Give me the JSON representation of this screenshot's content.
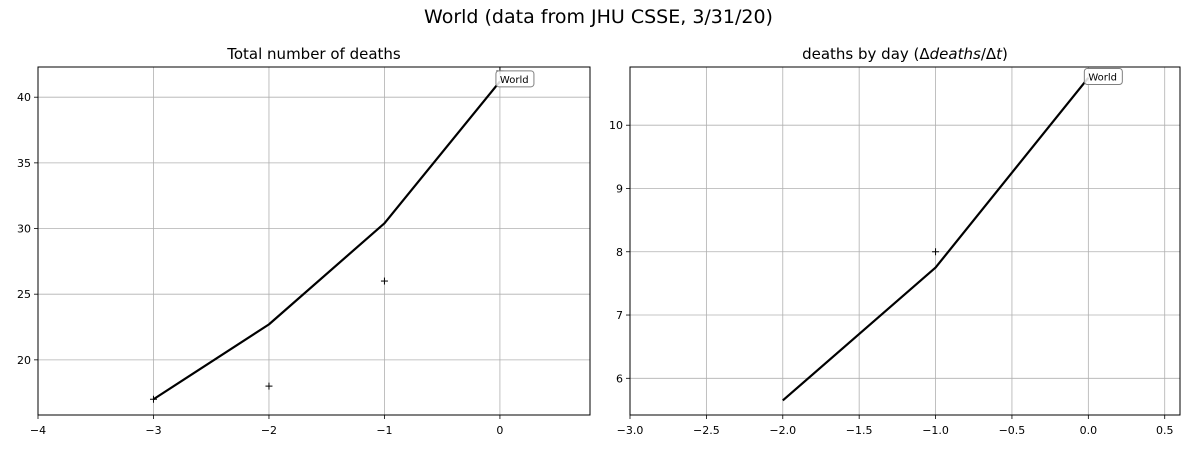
{
  "figure": {
    "suptitle": "World (data from JHU CSSE, 3/31/20)"
  },
  "chart_data": [
    {
      "type": "line",
      "title": "Total number of deaths",
      "xlabel": "",
      "ylabel": "",
      "xlim": [
        -4,
        0.78
      ],
      "ylim": [
        15.8,
        42.3
      ],
      "xticks": [
        -4,
        -3,
        -2,
        -1,
        0
      ],
      "xtick_labels": [
        "−4",
        "−3",
        "−2",
        "−1",
        "0"
      ],
      "yticks": [
        20,
        25,
        30,
        35,
        40
      ],
      "ytick_labels": [
        "20",
        "25",
        "30",
        "35",
        "40"
      ],
      "grid": true,
      "series": [
        {
          "kind": "line",
          "color": "#000000",
          "x": [
            -3,
            -2,
            -1,
            0
          ],
          "y": [
            17.0,
            22.7,
            30.4,
            41.2
          ]
        },
        {
          "kind": "markers",
          "marker": "+",
          "color": "#000000",
          "x": [
            -3,
            -2,
            -1,
            0
          ],
          "y": [
            17,
            18,
            26,
            42
          ]
        }
      ],
      "annotation": {
        "text": "World",
        "x": 0,
        "y": 41.4
      }
    },
    {
      "type": "line",
      "title": "deaths by day (Δdeaths/Δt)",
      "title_parts": {
        "prefix": "deaths by day (",
        "delta1": "Δ",
        "word": "deaths",
        "slash": "/",
        "delta2": "Δ",
        "t": "t",
        "suffix": ")"
      },
      "xlabel": "",
      "ylabel": "",
      "xlim": [
        -3.0,
        0.6
      ],
      "ylim": [
        5.42,
        10.92
      ],
      "xticks": [
        -3.0,
        -2.5,
        -2.0,
        -1.5,
        -1.0,
        -0.5,
        0.0,
        0.5
      ],
      "xtick_labels": [
        "−3.0",
        "−2.5",
        "−2.0",
        "−1.5",
        "−1.0",
        "−0.5",
        "0.0",
        "0.5"
      ],
      "yticks": [
        6,
        7,
        8,
        9,
        10
      ],
      "ytick_labels": [
        "6",
        "7",
        "8",
        "9",
        "10"
      ],
      "grid": true,
      "series": [
        {
          "kind": "line",
          "color": "#000000",
          "x": [
            -2,
            -1,
            0
          ],
          "y": [
            5.65,
            7.75,
            10.75
          ]
        },
        {
          "kind": "markers",
          "marker": "+",
          "color": "#000000",
          "x": [
            -1
          ],
          "y": [
            8
          ]
        }
      ],
      "annotation": {
        "text": "World",
        "x": 0,
        "y": 10.77
      }
    }
  ]
}
